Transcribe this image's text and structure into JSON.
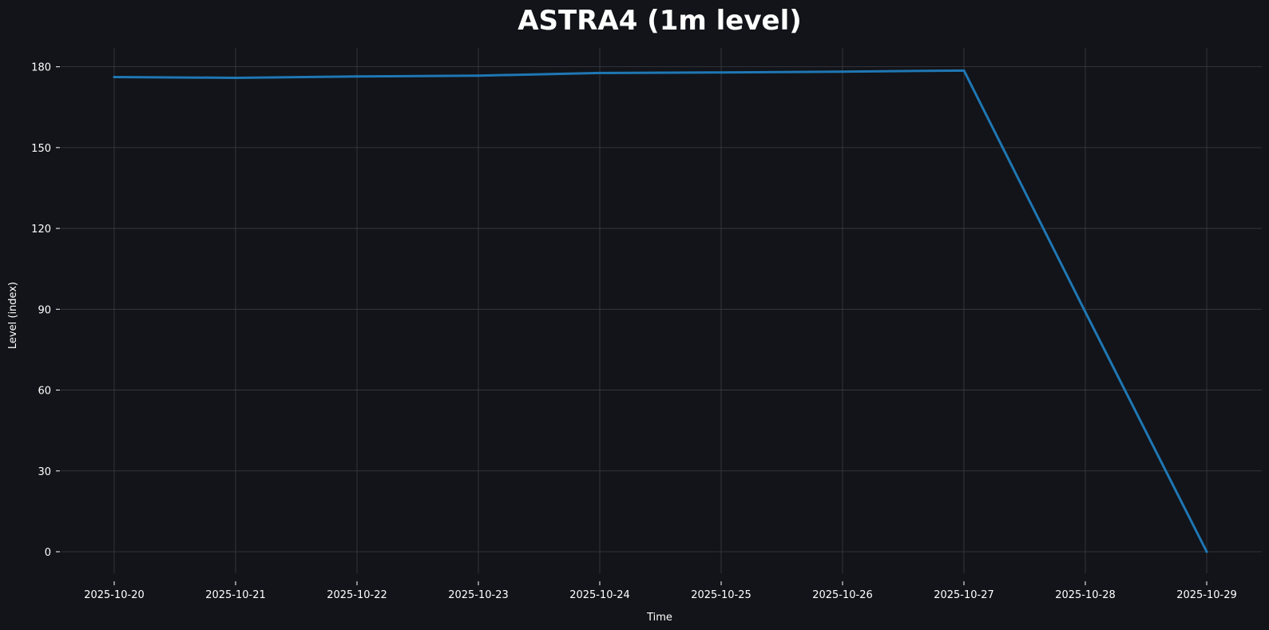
{
  "chart_data": {
    "type": "line",
    "title": "ASTRA4 (1m level)",
    "xlabel": "Time",
    "ylabel": "Level (index)",
    "x": [
      "2025-10-20",
      "2025-10-21",
      "2025-10-22",
      "2025-10-23",
      "2025-10-24",
      "2025-10-25",
      "2025-10-26",
      "2025-10-27",
      "2025-10-28",
      "2025-10-29"
    ],
    "x_ticks": [
      "2025-10-20",
      "2025-10-21",
      "2025-10-22",
      "2025-10-23",
      "2025-10-24",
      "2025-10-25",
      "2025-10-26",
      "2025-10-27",
      "2025-10-28",
      "2025-10-29"
    ],
    "y_ticks": [
      "0",
      "30",
      "60",
      "90",
      "120",
      "150",
      "180"
    ],
    "ylim": [
      -8,
      187
    ],
    "grid": true,
    "background_color": "#121419",
    "grid_color": "#3a3d44",
    "line_color": "#1f77b4",
    "series": [
      {
        "values": [
          176.2,
          175.9,
          176.4,
          176.7,
          177.7,
          177.9,
          178.2,
          178.6,
          89.0,
          0.0
        ]
      }
    ]
  }
}
